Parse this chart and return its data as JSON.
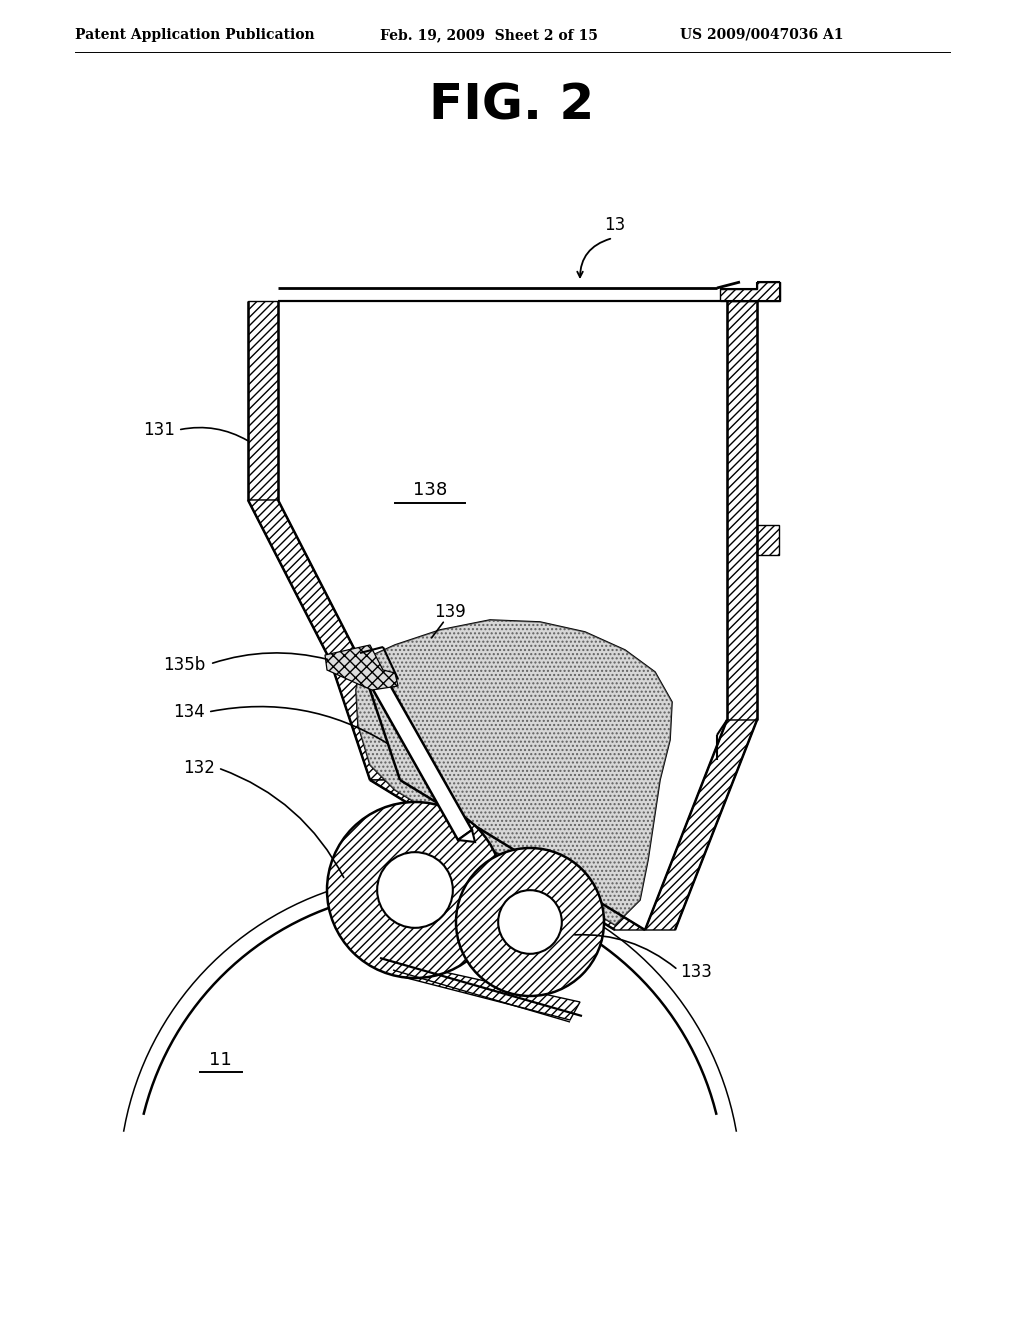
{
  "bg_color": "#ffffff",
  "title_text": "FIG. 2",
  "header_left": "Patent Application Publication",
  "header_mid": "Feb. 19, 2009  Sheet 2 of 15",
  "header_right": "US 2009/0047036 A1",
  "line_color": "#000000",
  "fig_title_fontsize": 36,
  "header_fontsize": 10,
  "label_fontsize": 12
}
